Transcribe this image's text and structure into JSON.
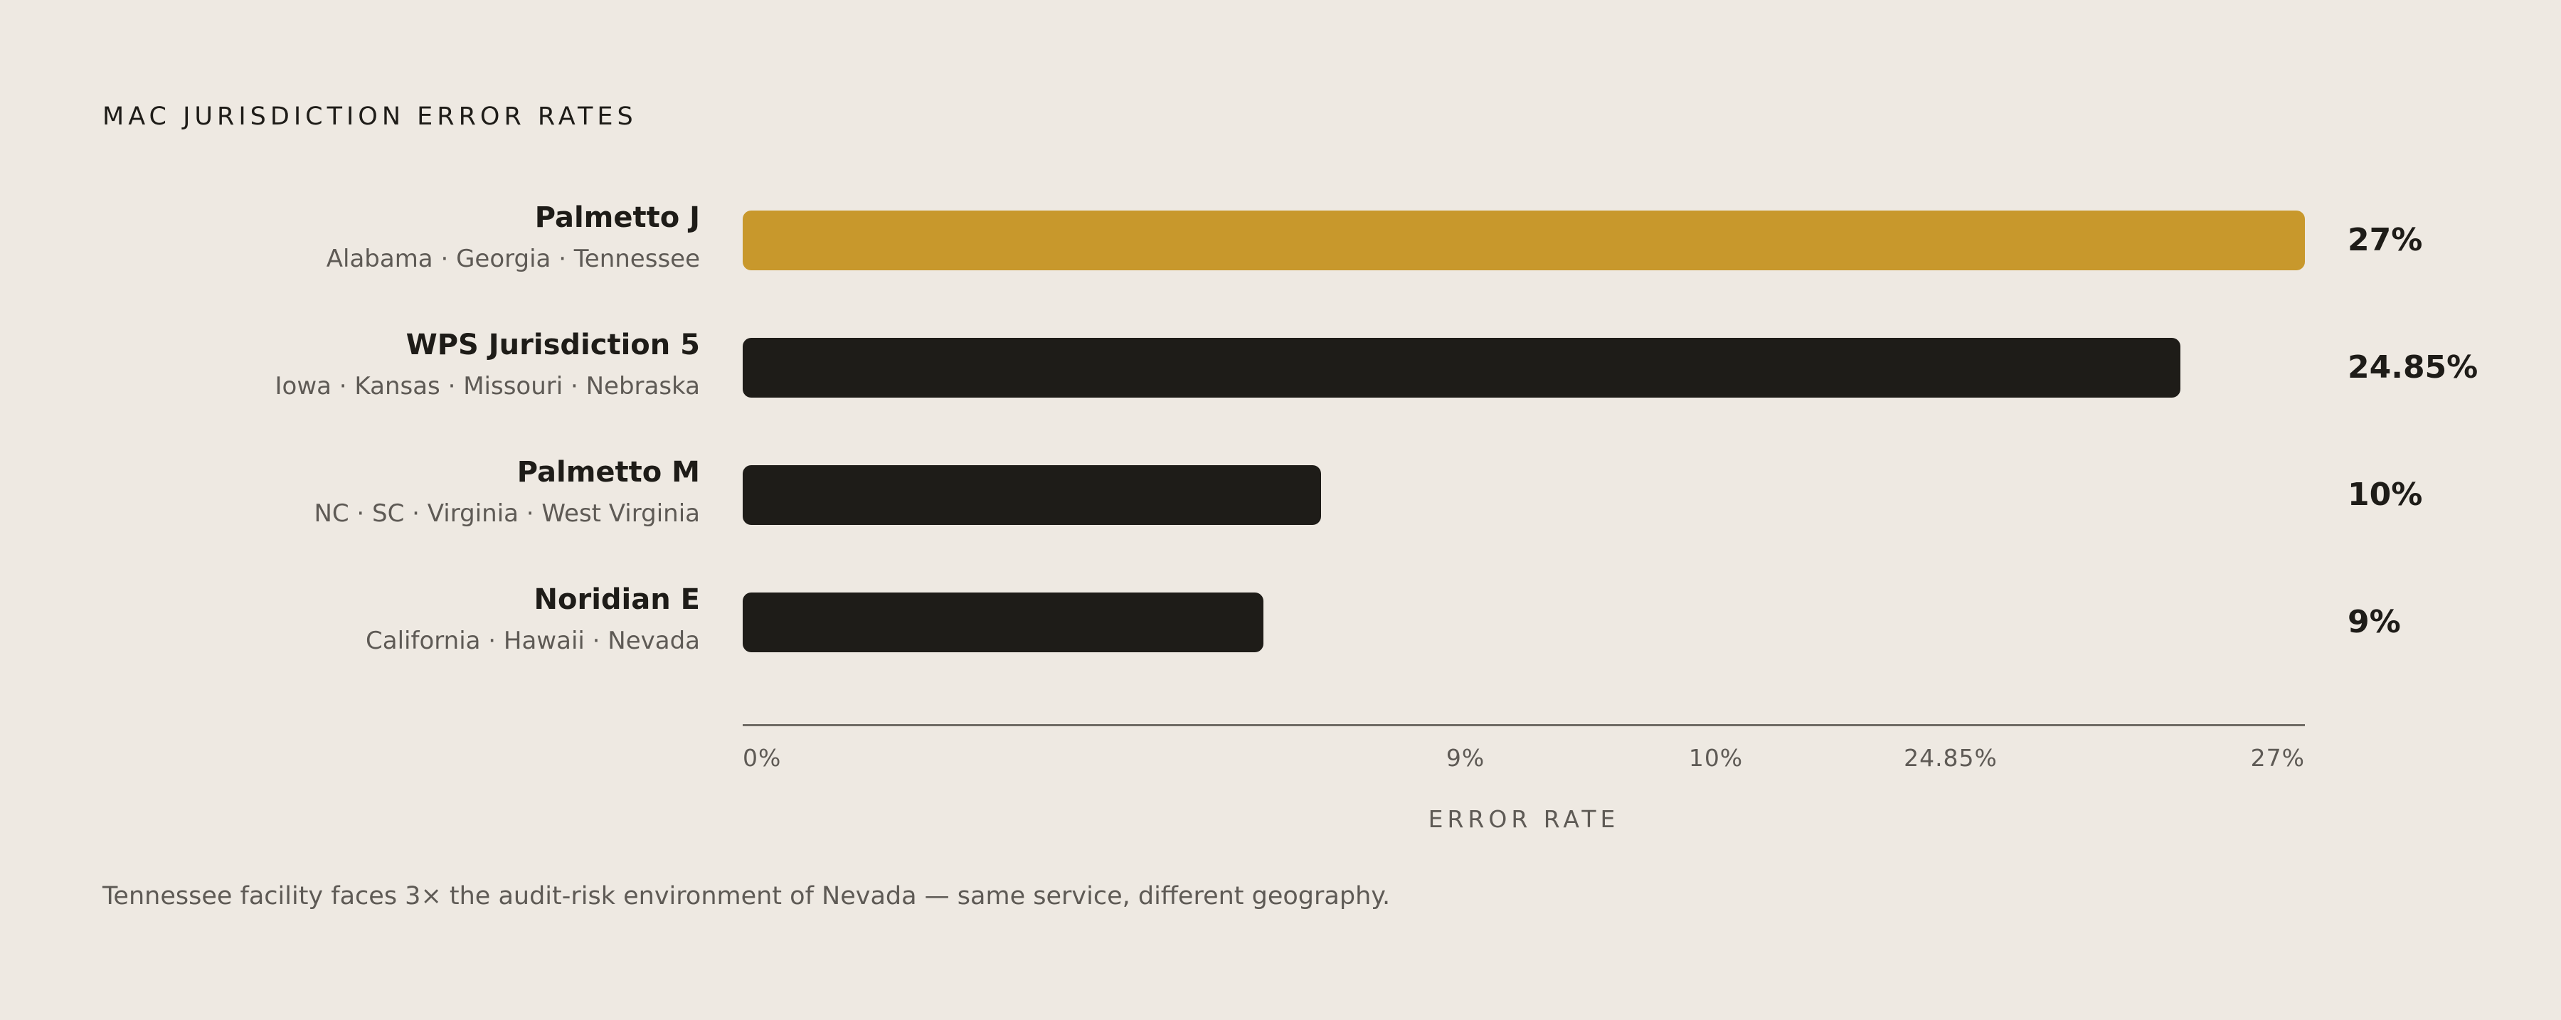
{
  "colors": {
    "background": "#EEE9E2",
    "highlight_bar": "#C8982C",
    "default_bar": "#1E1C18",
    "text_primary": "#1E1C18",
    "text_secondary": "#5E5A55"
  },
  "chart_data": {
    "type": "bar",
    "orientation": "horizontal",
    "title": "MAC JURISDICTION ERROR RATES",
    "xlabel": "ERROR RATE",
    "ylabel": "",
    "xlim": [
      0,
      27
    ],
    "grid": false,
    "categories": [
      "Palmetto J",
      "WPS Jurisdiction 5",
      "Palmetto M",
      "Noridian E"
    ],
    "subtitles": [
      "Alabama · Georgia · Tennessee",
      "Iowa · Kansas · Missouri · Nebraska",
      "NC · SC · Virginia · West Virginia",
      "California · Hawaii · Nevada"
    ],
    "values": [
      27,
      24.85,
      10,
      9
    ],
    "value_labels": [
      "27%",
      "24.85%",
      "10%",
      "9%"
    ],
    "highlighted": [
      true,
      false,
      false,
      false
    ],
    "ticks": [
      {
        "value": 0,
        "label": "0%"
      },
      {
        "value": 9,
        "label": "9%"
      },
      {
        "value": 10,
        "label": "10%"
      },
      {
        "value": 24.85,
        "label": "24.85%"
      },
      {
        "value": 27,
        "label": "27%"
      }
    ]
  },
  "footnote": "Tennessee facility faces 3× the audit-risk environment of Nevada — same service, different geography."
}
